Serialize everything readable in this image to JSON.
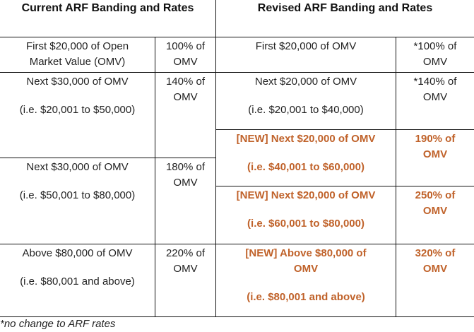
{
  "headers": {
    "current": "Current ARF Banding and Rates",
    "revised": "Revised ARF Banding and Rates"
  },
  "current": [
    {
      "band": [
        "First $20,000 of Open",
        "Market Value (OMV)"
      ],
      "range": "",
      "rate": [
        "100% of",
        "OMV"
      ]
    },
    {
      "band": [
        "Next $30,000 of OMV"
      ],
      "range": "(i.e. $20,001 to $50,000)",
      "rate": [
        "140% of",
        "OMV"
      ]
    },
    {
      "band": [
        "Next $30,000 of OMV"
      ],
      "range": "(i.e. $50,001 to $80,000)",
      "rate": [
        "180% of",
        "OMV"
      ]
    },
    {
      "band": [
        "Above $80,000 of OMV"
      ],
      "range": "(i.e. $80,001 and above)",
      "rate": [
        "220% of",
        "OMV"
      ]
    }
  ],
  "revised": [
    {
      "band": [
        "First $20,000 of OMV"
      ],
      "range": "",
      "rate": [
        "*100% of",
        "OMV"
      ],
      "new": false
    },
    {
      "band": [
        "Next $20,000 of OMV"
      ],
      "range": "(i.e. $20,001 to $40,000)",
      "rate": [
        "*140% of",
        "OMV"
      ],
      "new": false
    },
    {
      "band": [
        "[NEW] Next $20,000 of OMV"
      ],
      "range": "(i.e. $40,001 to $60,000)",
      "rate": [
        "190% of",
        "OMV"
      ],
      "new": true
    },
    {
      "band": [
        "[NEW] Next $20,000 of OMV"
      ],
      "range": "(i.e. $60,001 to $80,000)",
      "rate": [
        "250% of",
        "OMV"
      ],
      "new": true
    },
    {
      "band": [
        "[NEW] Above $80,000 of",
        "OMV"
      ],
      "range": "(i.e. $80,001 and above)",
      "rate": [
        "320% of",
        "OMV"
      ],
      "new": true
    }
  ],
  "footnote": "*no change to ARF rates",
  "colors": {
    "new_highlight": "#c0622a",
    "text": "#222222"
  }
}
